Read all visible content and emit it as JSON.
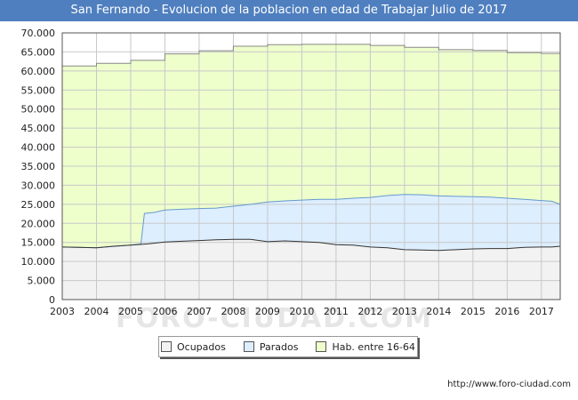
{
  "title": "San Fernando - Evolucion de la poblacion en edad de Trabajar Julio de 2017",
  "source": "http://www.foro-ciudad.com",
  "watermark": "FORO-CIUDAD.COM",
  "colors": {
    "title_bg": "#4f7fbf",
    "hab": "#eeffcc",
    "hab_line": "#888888",
    "parados": "#ddeeff",
    "parados_line": "#6699cc",
    "ocupados": "#f2f2f2",
    "ocupados_line": "#333333"
  },
  "chart_data": {
    "type": "area",
    "title": "San Fernando - Evolucion de la poblacion en edad de Trabajar Julio de 2017",
    "xlabel": "",
    "ylabel": "",
    "xlim": [
      2003,
      2017.55
    ],
    "ylim": [
      0,
      70000
    ],
    "grid": true,
    "x_ticks": [
      "2003",
      "2004",
      "2005",
      "2006",
      "2007",
      "2008",
      "2009",
      "2010",
      "2011",
      "2012",
      "2013",
      "2014",
      "2015",
      "2016",
      "2017"
    ],
    "y_ticks": [
      "0",
      "5.000",
      "10.000",
      "15.000",
      "20.000",
      "25.000",
      "30.000",
      "35.000",
      "40.000",
      "45.000",
      "50.000",
      "55.000",
      "60.000",
      "65.000",
      "70.000"
    ],
    "legend": [
      "Ocupados",
      "Parados",
      "Hab. entre 16-64"
    ],
    "legend_position": "bottom-center",
    "series": [
      {
        "name": "Hab. entre 16-64",
        "x": [
          2003,
          2004,
          2004,
          2005,
          2005,
          2006,
          2006,
          2007,
          2007,
          2008,
          2008,
          2009,
          2009,
          2010,
          2010,
          2011,
          2011,
          2012,
          2012,
          2013,
          2013,
          2014,
          2014,
          2015,
          2015,
          2016,
          2016,
          2017,
          2017,
          2017.55
        ],
        "values": [
          61300,
          61300,
          62000,
          62000,
          62800,
          62800,
          64500,
          64500,
          65300,
          65300,
          66500,
          66500,
          66900,
          66900,
          67000,
          67000,
          67000,
          67000,
          66700,
          66700,
          66200,
          66200,
          65600,
          65600,
          65400,
          65400,
          64800,
          64800,
          64600,
          64600
        ]
      },
      {
        "name": "Parados",
        "x": [
          2003,
          2004,
          2005,
          2005.3,
          2005.4,
          2005.7,
          2006,
          2006.5,
          2007,
          2007.5,
          2008,
          2008.5,
          2009,
          2009.5,
          2010,
          2010.5,
          2011,
          2011.5,
          2012,
          2012.5,
          2013,
          2013.5,
          2014,
          2014.5,
          2015,
          2015.5,
          2016,
          2016.5,
          2017,
          2017.3,
          2017.55
        ],
        "values": [
          13800,
          13600,
          14300,
          14600,
          22600,
          22900,
          23500,
          23700,
          23900,
          24000,
          24500,
          25000,
          25600,
          25900,
          26100,
          26300,
          26300,
          26600,
          26800,
          27300,
          27600,
          27500,
          27200,
          27100,
          27000,
          26900,
          26600,
          26300,
          26000,
          25800,
          25000
        ]
      },
      {
        "name": "Ocupados",
        "x": [
          2003,
          2003.5,
          2004,
          2004.5,
          2005,
          2005.5,
          2006,
          2006.5,
          2007,
          2007.5,
          2008,
          2008.5,
          2009,
          2009.5,
          2010,
          2010.5,
          2011,
          2011.5,
          2012,
          2012.5,
          2013,
          2013.5,
          2014,
          2014.5,
          2015,
          2015.5,
          2016,
          2016.5,
          2017,
          2017.3,
          2017.55
        ],
        "values": [
          13800,
          13700,
          13600,
          14000,
          14300,
          14600,
          15100,
          15300,
          15500,
          15700,
          15800,
          15800,
          15200,
          15400,
          15200,
          15000,
          14400,
          14300,
          13800,
          13600,
          13100,
          13000,
          12900,
          13100,
          13300,
          13400,
          13400,
          13700,
          13800,
          13800,
          14000
        ]
      }
    ]
  }
}
